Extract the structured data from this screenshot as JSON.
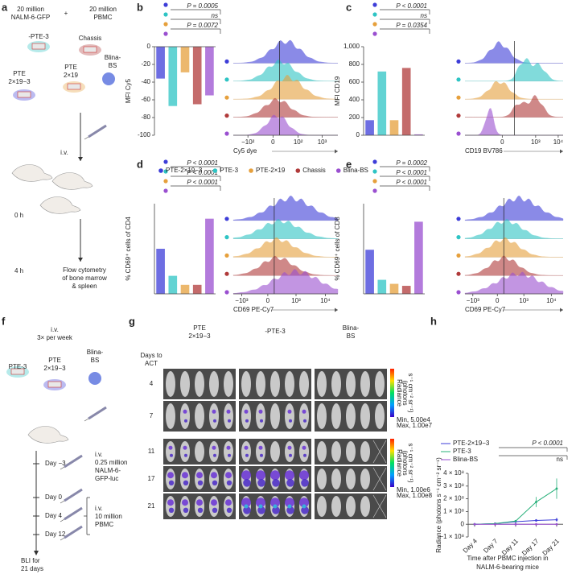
{
  "panel_labels": [
    "a",
    "b",
    "c",
    "d",
    "e",
    "f",
    "g",
    "h"
  ],
  "diagram_a": {
    "cells": [
      "20 million",
      "NALM-6-GFP"
    ],
    "plus": "+",
    "pbmc": [
      "20 million",
      "PBMC"
    ],
    "pte3": "-PTE-3",
    "chassis": "Chassis",
    "blina": [
      "Blina-",
      "BS"
    ],
    "pte21903": [
      "PTE",
      "2×19−3"
    ],
    "pte219": [
      "PTE",
      "2×19"
    ],
    "iv": "i.v.",
    "t0": "0 h",
    "t4": "4 h",
    "readout": [
      "Flow cytometry",
      "of bone marrow",
      "& spleen"
    ]
  },
  "diagram_f": {
    "schedule": [
      "i.v.",
      "3× per week"
    ],
    "pte3": "PTE-3",
    "pte21903": [
      "PTE",
      "2×19−3"
    ],
    "blina": [
      "Blina-",
      "BS"
    ],
    "days": [
      "Day −3",
      "Day 0",
      "Day 4",
      "Day 12"
    ],
    "tumor": [
      "i.v.",
      "0.25 million",
      "NALM-6-",
      "GFP-luc"
    ],
    "pbmc": [
      "i.v.",
      "10 million",
      "PBMC"
    ],
    "bli": [
      "BLI for",
      "21 days"
    ]
  },
  "diagram_g": {
    "groups": [
      [
        "PTE",
        "2×19−3"
      ],
      [
        "-PTE-3"
      ],
      [
        "Blina-",
        "BS"
      ]
    ],
    "row_title": [
      "Days to",
      "ACT"
    ],
    "rows": [
      "4",
      "7",
      "11",
      "17",
      "21"
    ],
    "colorbar_label": [
      "Radiance",
      "(photons",
      "s⁻¹ cm⁻² sr⁻¹)"
    ],
    "scale_top": [
      "Min, 5.00e4",
      "Max, 1.00e7"
    ],
    "scale_bottom": [
      "Min, 1.00e6",
      "Max, 1.00e8"
    ]
  },
  "chart_data": [
    {
      "type": "bar",
      "ylabel": "MFI Cy5",
      "categories": [
        "PTE-2×19−3",
        "PTE-3",
        "PTE-2×19",
        "Chassis",
        "Blina-BS"
      ],
      "colors": [
        "#3d3dd8",
        "#2ec4c4",
        "#e6a03c",
        "#b03a3a",
        "#9a4fd0"
      ],
      "values": [
        -36,
        -67,
        -29,
        -65,
        -55
      ],
      "ylim": [
        -100,
        0
      ],
      "yticks": [
        0,
        -20,
        -40,
        -60,
        -80,
        -100
      ],
      "annotations": [
        "P = 0.0005",
        "ns",
        "P = 0.0072"
      ],
      "hist_xlabel": "Cy5 dye",
      "hist_xticks": [
        "−10²",
        "0",
        "10²",
        "10³"
      ]
    },
    {
      "type": "bar",
      "ylabel": "MFI CD19",
      "categories": [
        "PTE-2×19−3",
        "PTE-3",
        "PTE-2×19",
        "Chassis",
        "Blina-BS"
      ],
      "colors": [
        "#3d3dd8",
        "#2ec4c4",
        "#e6a03c",
        "#b03a3a",
        "#9a4fd0"
      ],
      "values": [
        170,
        720,
        170,
        760,
        10
      ],
      "ylim": [
        0,
        1000
      ],
      "yticks": [
        0,
        200,
        400,
        600,
        800,
        {
          "value": 1000,
          "label": "1,000"
        }
      ],
      "annotations": [
        "P < 0.0001",
        "ns",
        "P = 0.0354"
      ],
      "hist_xlabel": "CD19 BV786",
      "hist_xticks": [
        "0",
        "10³",
        "10⁴"
      ]
    },
    {
      "type": "bar",
      "ylabel": "% CD69⁺ cells of CD4",
      "categories": [
        "PTE-2×19−3",
        "PTE-3",
        "PTE-2×19",
        "Chassis",
        "Blina-BS"
      ],
      "colors": [
        "#3d3dd8",
        "#2ec4c4",
        "#e6a03c",
        "#b03a3a",
        "#9a4fd0"
      ],
      "values": [
        30,
        12,
        6,
        6,
        50
      ],
      "ylim": [
        0,
        60
      ],
      "annotations": [
        "P < 0.0001",
        "P < 0.0001",
        "P < 0.0001"
      ],
      "hist_xlabel": "CD69 PE-Cy7",
      "hist_xticks": [
        "−10³",
        "0",
        "10³",
        "10⁴"
      ]
    },
    {
      "type": "bar",
      "ylabel": "% CD69⁺ cells of CD8",
      "categories": [
        "PTE-2×19−3",
        "PTE-3",
        "PTE-2×19",
        "Chassis",
        "Blina-BS"
      ],
      "colors": [
        "#3d3dd8",
        "#2ec4c4",
        "#e6a03c",
        "#b03a3a",
        "#9a4fd0"
      ],
      "values": [
        22,
        7,
        5,
        4,
        36
      ],
      "ylim": [
        0,
        45
      ],
      "annotations": [
        "P = 0.0002",
        "P < 0.0001",
        "P < 0.0001"
      ],
      "hist_xlabel": "CD69 PE-Cy7",
      "hist_xticks": [
        "−10³",
        "0",
        "10³",
        "10⁴"
      ]
    },
    {
      "type": "line",
      "ylabel": "Radiance (photons s⁻¹ cm⁻² sr⁻¹)",
      "xlabel": [
        "Time after PBMC injection in",
        "NALM-6-bearing mice"
      ],
      "categories": [
        "Day 4",
        "Day 7",
        "Day 11",
        "Day 17",
        "Day 21"
      ],
      "series": [
        {
          "name": "PTE-2×19−3",
          "color": "#3d3dd8",
          "values": [
            0,
            5000000,
            20000000,
            30000000,
            35000000
          ],
          "errors": [
            0,
            0,
            2000000,
            10000000,
            15000000
          ]
        },
        {
          "name": "PTE-3",
          "color": "#27b07a",
          "values": [
            0,
            5000000,
            25000000,
            175000000,
            280000000
          ],
          "errors": [
            0,
            0,
            5000000,
            40000000,
            80000000
          ]
        },
        {
          "name": "Blina-BS",
          "color": "#9a4fd0",
          "values": [
            0,
            0,
            0,
            0,
            0
          ],
          "errors": [
            0,
            0,
            0,
            0,
            0
          ]
        }
      ],
      "ylim": [
        -100000000,
        400000000
      ],
      "yticks": [
        {
          "value": -100000000,
          "label": "−1 × 10⁸"
        },
        0,
        {
          "value": 100000000,
          "label": "1 × 10⁸"
        },
        {
          "value": 200000000,
          "label": "2 × 10⁸"
        },
        {
          "value": 300000000,
          "label": "3 × 10⁸"
        },
        {
          "value": 400000000,
          "label": "4 × 10⁸"
        }
      ],
      "annotations": [
        "P < 0.0001",
        "ns"
      ],
      "legend": "top-left"
    }
  ]
}
